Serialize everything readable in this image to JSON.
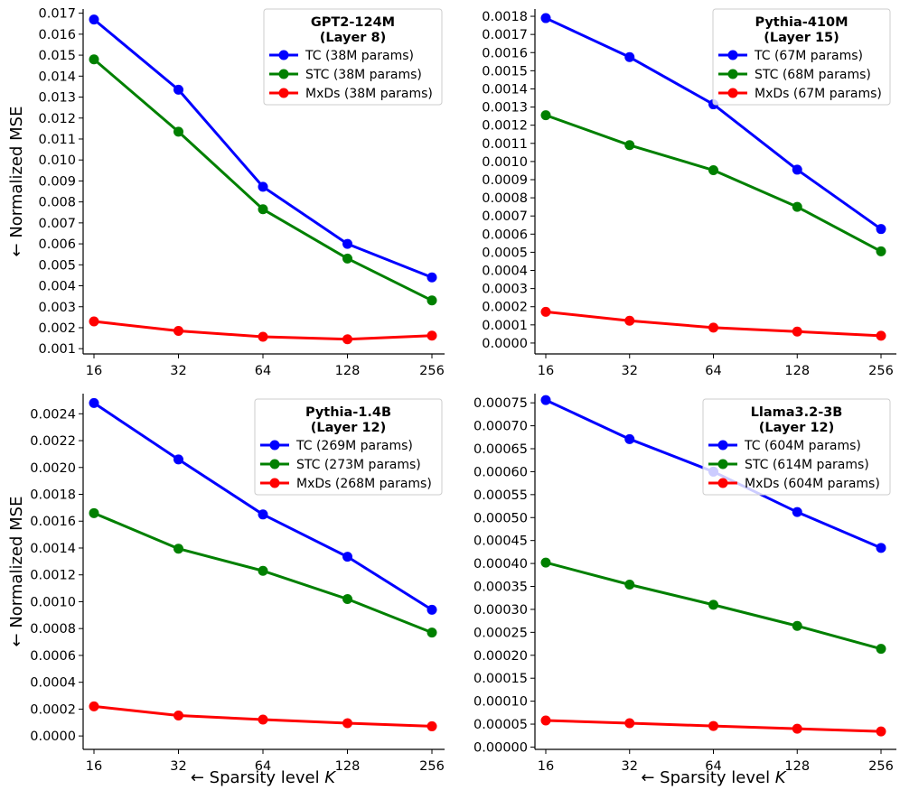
{
  "figure_labels": {
    "ylabel": "← Normalized MSE",
    "xlabel_prefix": "← Sparsity level ",
    "xlabel_var": "K"
  },
  "chart_data": [
    {
      "type": "line",
      "title": "GPT2-124M",
      "subtitle": "(Layer 8)",
      "x": [
        16,
        32,
        64,
        128,
        256
      ],
      "xticks": [
        "16",
        "32",
        "64",
        "128",
        "256"
      ],
      "xscale": "log2",
      "ylim": [
        0.00075,
        0.0172
      ],
      "yticks": [
        0.001,
        0.002,
        0.003,
        0.004,
        0.005,
        0.006,
        0.007,
        0.008,
        0.009,
        0.01,
        0.011,
        0.012,
        0.013,
        0.014,
        0.015,
        0.016,
        0.017
      ],
      "ytick_labels": [
        "0.001",
        "0.002",
        "0.003",
        "0.004",
        "0.005",
        "0.006",
        "0.007",
        "0.008",
        "0.009",
        "0.010",
        "0.011",
        "0.012",
        "0.013",
        "0.014",
        "0.015",
        "0.016",
        "0.017"
      ],
      "ylabel": "← Normalized MSE",
      "xlabel": "",
      "legend_position": "upper-right",
      "series": [
        {
          "name": "TC (38M params)",
          "color": "#0000ff",
          "values": [
            0.0167,
            0.01335,
            0.00872,
            0.006,
            0.0044
          ]
        },
        {
          "name": "STC (38M params)",
          "color": "#008000",
          "values": [
            0.0148,
            0.01135,
            0.00765,
            0.0053,
            0.0033
          ]
        },
        {
          "name": "MxDs (38M params)",
          "color": "#ff0000",
          "values": [
            0.0023,
            0.00185,
            0.00157,
            0.00145,
            0.00162
          ]
        }
      ]
    },
    {
      "type": "line",
      "title": "Pythia-410M",
      "subtitle": "(Layer 15)",
      "x": [
        16,
        32,
        64,
        128,
        256
      ],
      "xticks": [
        "16",
        "32",
        "64",
        "128",
        "256"
      ],
      "xscale": "log2",
      "ylim": [
        -6e-05,
        0.00184
      ],
      "yticks": [
        0.0,
        0.0001,
        0.0002,
        0.0003,
        0.0004,
        0.0005,
        0.0006,
        0.0007,
        0.0008,
        0.0009,
        0.001,
        0.0011,
        0.0012,
        0.0013,
        0.0014,
        0.0015,
        0.0016,
        0.0017,
        0.0018
      ],
      "ytick_labels": [
        "0.0000",
        "0.0001",
        "0.0002",
        "0.0003",
        "0.0004",
        "0.0005",
        "0.0006",
        "0.0007",
        "0.0008",
        "0.0009",
        "0.0010",
        "0.0011",
        "0.0012",
        "0.0013",
        "0.0014",
        "0.0015",
        "0.0016",
        "0.0017",
        "0.0018"
      ],
      "ylabel": "",
      "xlabel": "",
      "legend_position": "upper-right",
      "series": [
        {
          "name": "TC (67M params)",
          "color": "#0000ff",
          "values": [
            0.00179,
            0.001575,
            0.001315,
            0.000955,
            0.000628
          ]
        },
        {
          "name": "STC (68M params)",
          "color": "#008000",
          "values": [
            0.001255,
            0.00109,
            0.000952,
            0.00075,
            0.000505
          ]
        },
        {
          "name": "MxDs (67M params)",
          "color": "#ff0000",
          "values": [
            0.000172,
            0.000123,
            8.5e-05,
            6.3e-05,
            4e-05
          ]
        }
      ]
    },
    {
      "type": "line",
      "title": "Pythia-1.4B",
      "subtitle": "(Layer 12)",
      "x": [
        16,
        32,
        64,
        128,
        256
      ],
      "xticks": [
        "16",
        "32",
        "64",
        "128",
        "256"
      ],
      "xscale": "log2",
      "ylim": [
        -0.0001,
        0.00255
      ],
      "yticks": [
        0.0,
        0.0002,
        0.0004,
        0.0006,
        0.0008,
        0.001,
        0.0012,
        0.0014,
        0.0016,
        0.0018,
        0.002,
        0.0022,
        0.0024
      ],
      "ytick_labels": [
        "0.0000",
        "0.0002",
        "0.0004",
        "0.0006",
        "0.0008",
        "0.0010",
        "0.0012",
        "0.0014",
        "0.0016",
        "0.0018",
        "0.0020",
        "0.0022",
        "0.0024"
      ],
      "ylabel": "← Normalized MSE",
      "xlabel": "← Sparsity level K",
      "legend_position": "upper-right",
      "series": [
        {
          "name": "TC (269M params)",
          "color": "#0000ff",
          "values": [
            0.00248,
            0.00206,
            0.00165,
            0.001335,
            0.00094
          ]
        },
        {
          "name": "STC (273M params)",
          "color": "#008000",
          "values": [
            0.00166,
            0.001395,
            0.00123,
            0.00102,
            0.00077
          ]
        },
        {
          "name": "MxDs (268M params)",
          "color": "#ff0000",
          "values": [
            0.00022,
            0.000152,
            0.000122,
            9.5e-05,
            7.2e-05
          ]
        }
      ]
    },
    {
      "type": "line",
      "title": "Llama3.2-3B",
      "subtitle": "(Layer 12)",
      "x": [
        16,
        32,
        64,
        128,
        256
      ],
      "xticks": [
        "16",
        "32",
        "64",
        "128",
        "256"
      ],
      "xscale": "log2",
      "ylim": [
        -5e-06,
        0.00077
      ],
      "yticks": [
        0.0,
        5e-05,
        0.0001,
        0.00015,
        0.0002,
        0.00025,
        0.0003,
        0.00035,
        0.0004,
        0.00045,
        0.0005,
        0.00055,
        0.0006,
        0.00065,
        0.0007,
        0.00075
      ],
      "ytick_labels": [
        "0.00000",
        "0.00005",
        "0.00010",
        "0.00015",
        "0.00020",
        "0.00025",
        "0.00030",
        "0.00035",
        "0.00040",
        "0.00045",
        "0.00050",
        "0.00055",
        "0.00060",
        "0.00065",
        "0.00070",
        "0.00075"
      ],
      "ylabel": "",
      "xlabel": "← Sparsity level K",
      "legend_position": "upper-right",
      "series": [
        {
          "name": "TC (604M params)",
          "color": "#0000ff",
          "values": [
            0.000756,
            0.000671,
            0.0006,
            0.000512,
            0.000434
          ]
        },
        {
          "name": "STC (614M params)",
          "color": "#008000",
          "values": [
            0.000402,
            0.000354,
            0.00031,
            0.000264,
            0.000214
          ]
        },
        {
          "name": "MxDs (604M params)",
          "color": "#ff0000",
          "values": [
            5.8e-05,
            5.2e-05,
            4.6e-05,
            4e-05,
            3.4e-05
          ]
        }
      ]
    }
  ]
}
